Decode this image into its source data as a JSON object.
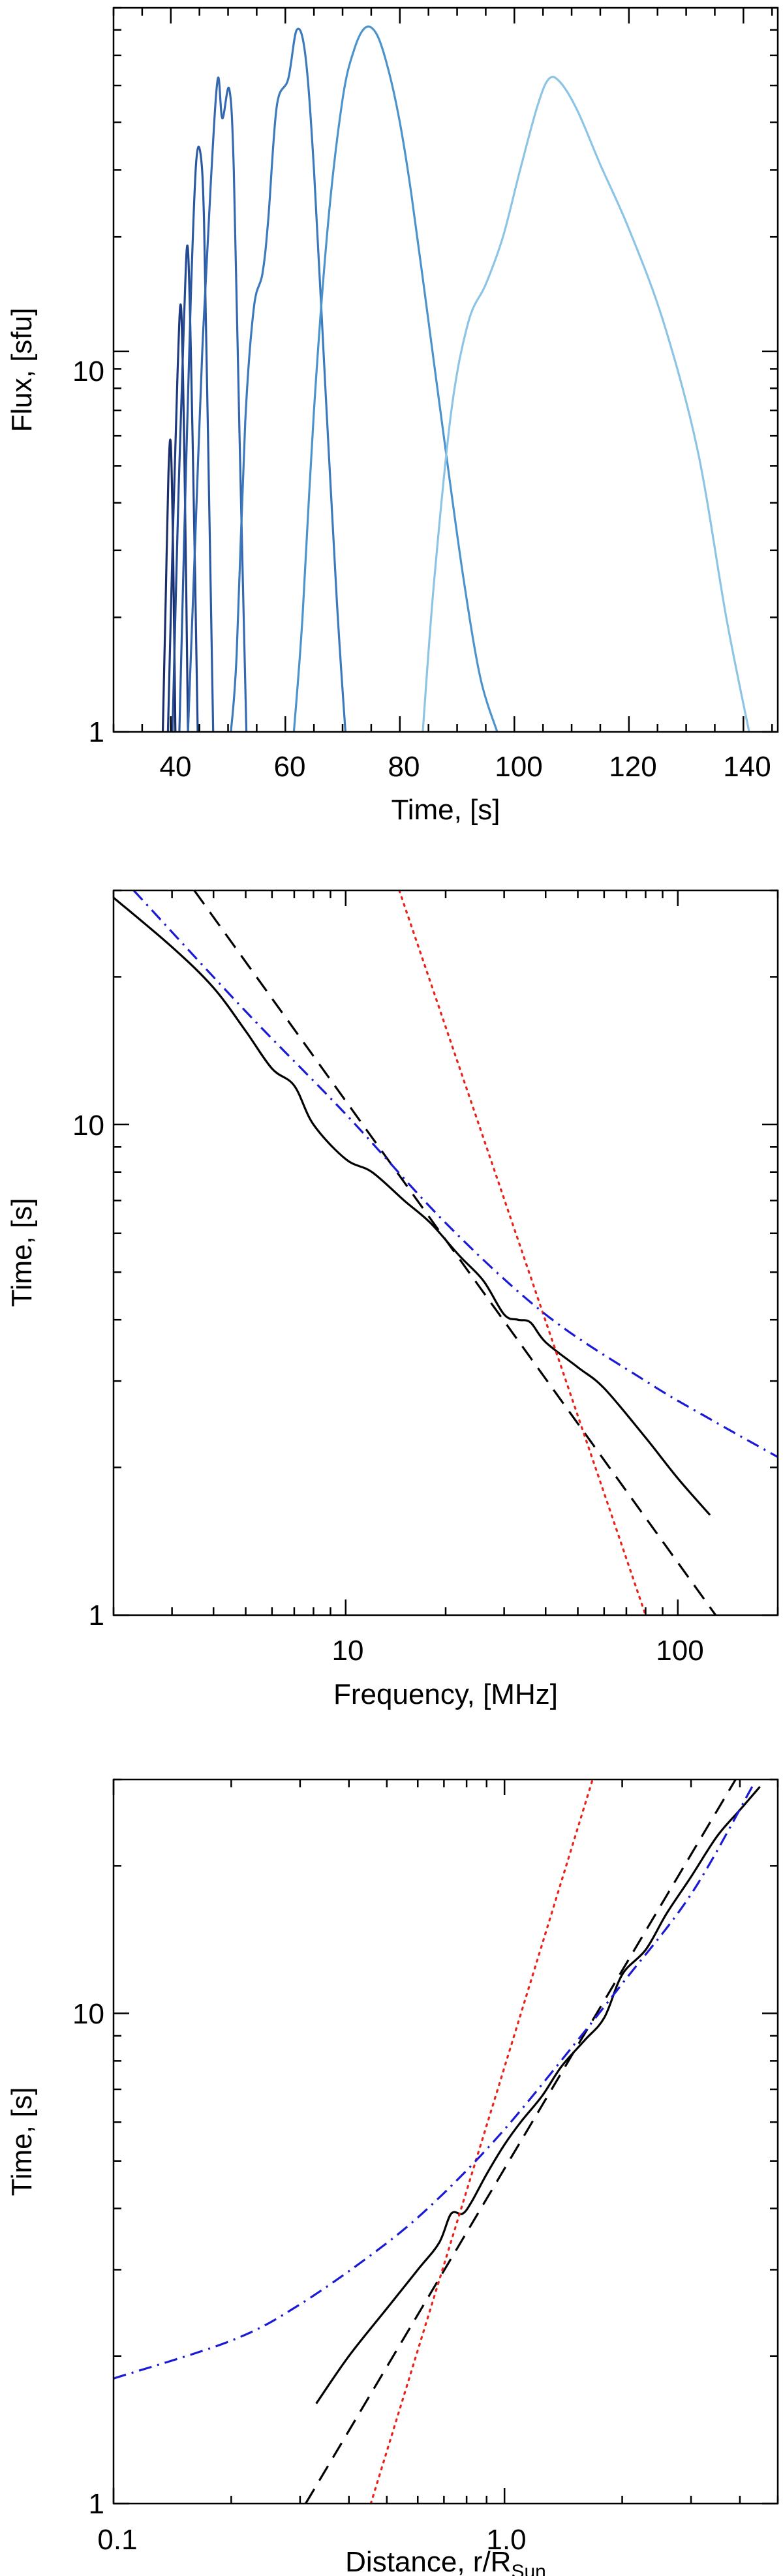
{
  "chart_data": [
    {
      "type": "line",
      "xlabel": "Time, [s]",
      "ylabel": "Flux, [sfu]",
      "xscale": "linear",
      "yscale": "log",
      "xlim": [
        30,
        146
      ],
      "ylim": [
        1,
        80
      ],
      "x_ticks": [
        "40",
        "60",
        "80",
        "100",
        "120",
        "140"
      ],
      "y_ticks": [
        "1",
        "10"
      ],
      "grid": false,
      "legend": "none",
      "series": [
        {
          "color": "#1a2d6b",
          "peak": 5.7,
          "x": [
            38.6,
            39.1,
            39.6,
            40.0,
            40.4,
            40.8
          ],
          "y": [
            1,
            2.2,
            4.8,
            5.7,
            3.0,
            1
          ]
        },
        {
          "color": "#1e3a80",
          "peak": 13,
          "x": [
            39.5,
            40.4,
            41.2,
            41.8,
            42.4,
            43.0
          ],
          "y": [
            1,
            3.5,
            9,
            13,
            5,
            1
          ]
        },
        {
          "color": "#234a92",
          "peak": 18.5,
          "x": [
            40.3,
            41.3,
            42.3,
            43.0,
            43.8,
            44.7
          ],
          "y": [
            1,
            4,
            12,
            18.5,
            6,
            1
          ]
        },
        {
          "color": "#2a5aa3",
          "peak": 33,
          "x": [
            41.5,
            42.5,
            43.5,
            44.4,
            45.2,
            45.8,
            46.5,
            47.4
          ],
          "y": [
            1,
            4,
            14,
            31,
            33,
            22,
            6,
            1
          ]
        },
        {
          "color": "#3469b1",
          "peak": 52,
          "x": [
            43.0,
            44.2,
            45.5,
            47.0,
            48.2,
            49.0,
            50.2,
            51.0,
            52.0,
            53.2
          ],
          "y": [
            1,
            3,
            10,
            28,
            52,
            41,
            49,
            30,
            6,
            1
          ]
        },
        {
          "color": "#3b7abd",
          "peak": 70,
          "x": [
            50.5,
            51.5,
            53.0,
            54.5,
            56.0,
            57.0,
            58.5,
            60.5,
            62.0,
            63.5,
            65.0,
            67.0,
            69.0,
            70.5
          ],
          "y": [
            1,
            1.6,
            6.5,
            13,
            16,
            22,
            44,
            52,
            70,
            60,
            30,
            8,
            2.2,
            1
          ]
        },
        {
          "color": "#4b93cc",
          "peak": 71,
          "x": [
            61.5,
            63.0,
            65.0,
            67.5,
            70.0,
            72.0,
            74.0,
            76.0,
            78.0,
            80.0,
            82.0,
            85.0,
            88.0,
            91.0,
            94.0,
            97.0
          ],
          "y": [
            1,
            2,
            7,
            22,
            46,
            62,
            71,
            68,
            55,
            40,
            26,
            12,
            5.5,
            2.6,
            1.4,
            1
          ]
        },
        {
          "color": "#8cc4e6",
          "peak": 52,
          "x": [
            84.0,
            86.0,
            89.0,
            92.0,
            95.0,
            98.0,
            101.0,
            104.0,
            106.0,
            108.0,
            111.0,
            115.0,
            120.0,
            126.0,
            132.0,
            137.0,
            141.0
          ],
          "y": [
            1,
            2.5,
            7,
            12,
            15,
            20,
            30,
            44,
            52,
            51,
            43,
            31,
            21,
            12,
            5.5,
            2,
            1
          ]
        }
      ]
    },
    {
      "type": "line",
      "xlabel": "Frequency, [MHz]",
      "ylabel": "Time, [s]",
      "xscale": "log",
      "yscale": "log",
      "xlim": [
        2,
        200
      ],
      "ylim": [
        1,
        30
      ],
      "x_ticks": [
        "10",
        "100"
      ],
      "y_ticks": [
        "1",
        "10"
      ],
      "grid": false,
      "legend": "none",
      "series": [
        {
          "style": "solid",
          "color": "#000000",
          "x": [
            2.0,
            3.0,
            4.0,
            5.0,
            6.0,
            7.0,
            8.0,
            10.0,
            12.0,
            15.0,
            18.0,
            22.0,
            26.0,
            30.0,
            33.0,
            36.0,
            40.0,
            50.0,
            60.0,
            80.0,
            100.0,
            125.0
          ],
          "y": [
            29,
            23,
            19,
            15.5,
            13,
            12,
            10,
            8.5,
            8,
            7,
            6.3,
            5.4,
            4.8,
            4.1,
            4.0,
            3.95,
            3.6,
            3.2,
            2.9,
            2.3,
            1.9,
            1.6
          ]
        },
        {
          "style": "dashed",
          "color": "#000000",
          "x": [
            3.5,
            130.0
          ],
          "y": [
            30,
            1
          ]
        },
        {
          "style": "dotted",
          "color": "#e8231a",
          "x": [
            14.5,
            80.0
          ],
          "y": [
            30,
            1
          ]
        },
        {
          "style": "dashdot",
          "color": "#1a1ad6",
          "x": [
            2.3,
            5.0,
            10.0,
            20.0,
            40.0,
            80.0,
            120.0,
            200.0
          ],
          "y": [
            30,
            17,
            10.5,
            6.3,
            4.1,
            3.0,
            2.55,
            2.1
          ]
        }
      ]
    },
    {
      "type": "line",
      "xlabel": "Distance, r/R",
      "xlabel_subscript": "Sun",
      "ylabel": "Time, [s]",
      "xscale": "log",
      "yscale": "log",
      "xlim": [
        0.1,
        5
      ],
      "ylim": [
        1,
        30
      ],
      "x_ticks": [
        "0.1",
        "1.0"
      ],
      "y_ticks": [
        "1",
        "10"
      ],
      "grid": false,
      "legend": "none",
      "series": [
        {
          "style": "solid",
          "color": "#000000",
          "x": [
            0.33,
            0.4,
            0.5,
            0.6,
            0.68,
            0.73,
            0.78,
            0.82,
            0.9,
            1.0,
            1.1,
            1.25,
            1.4,
            1.6,
            1.8,
            2.0,
            2.3,
            2.6,
            3.0,
            3.5,
            4.0,
            4.5
          ],
          "y": [
            1.6,
            2.0,
            2.5,
            3.0,
            3.4,
            3.9,
            3.9,
            4.1,
            4.7,
            5.4,
            6.0,
            6.8,
            7.8,
            8.8,
            9.8,
            12,
            13.5,
            16,
            19,
            23,
            26,
            29
          ]
        },
        {
          "style": "dashed",
          "color": "#000000",
          "x": [
            0.31,
            3.9
          ],
          "y": [
            1,
            30
          ]
        },
        {
          "style": "dotted",
          "color": "#e8231a",
          "x": [
            0.455,
            1.68
          ],
          "y": [
            1,
            30
          ]
        },
        {
          "style": "dashdot",
          "color": "#1a1ad6",
          "x": [
            0.1,
            0.2,
            0.3,
            0.5,
            0.7,
            1.0,
            1.5,
            2.0,
            3.0,
            4.3
          ],
          "y": [
            1.8,
            2.15,
            2.55,
            3.4,
            4.3,
            5.8,
            8.6,
            11.5,
            17.5,
            29
          ]
        }
      ]
    }
  ]
}
